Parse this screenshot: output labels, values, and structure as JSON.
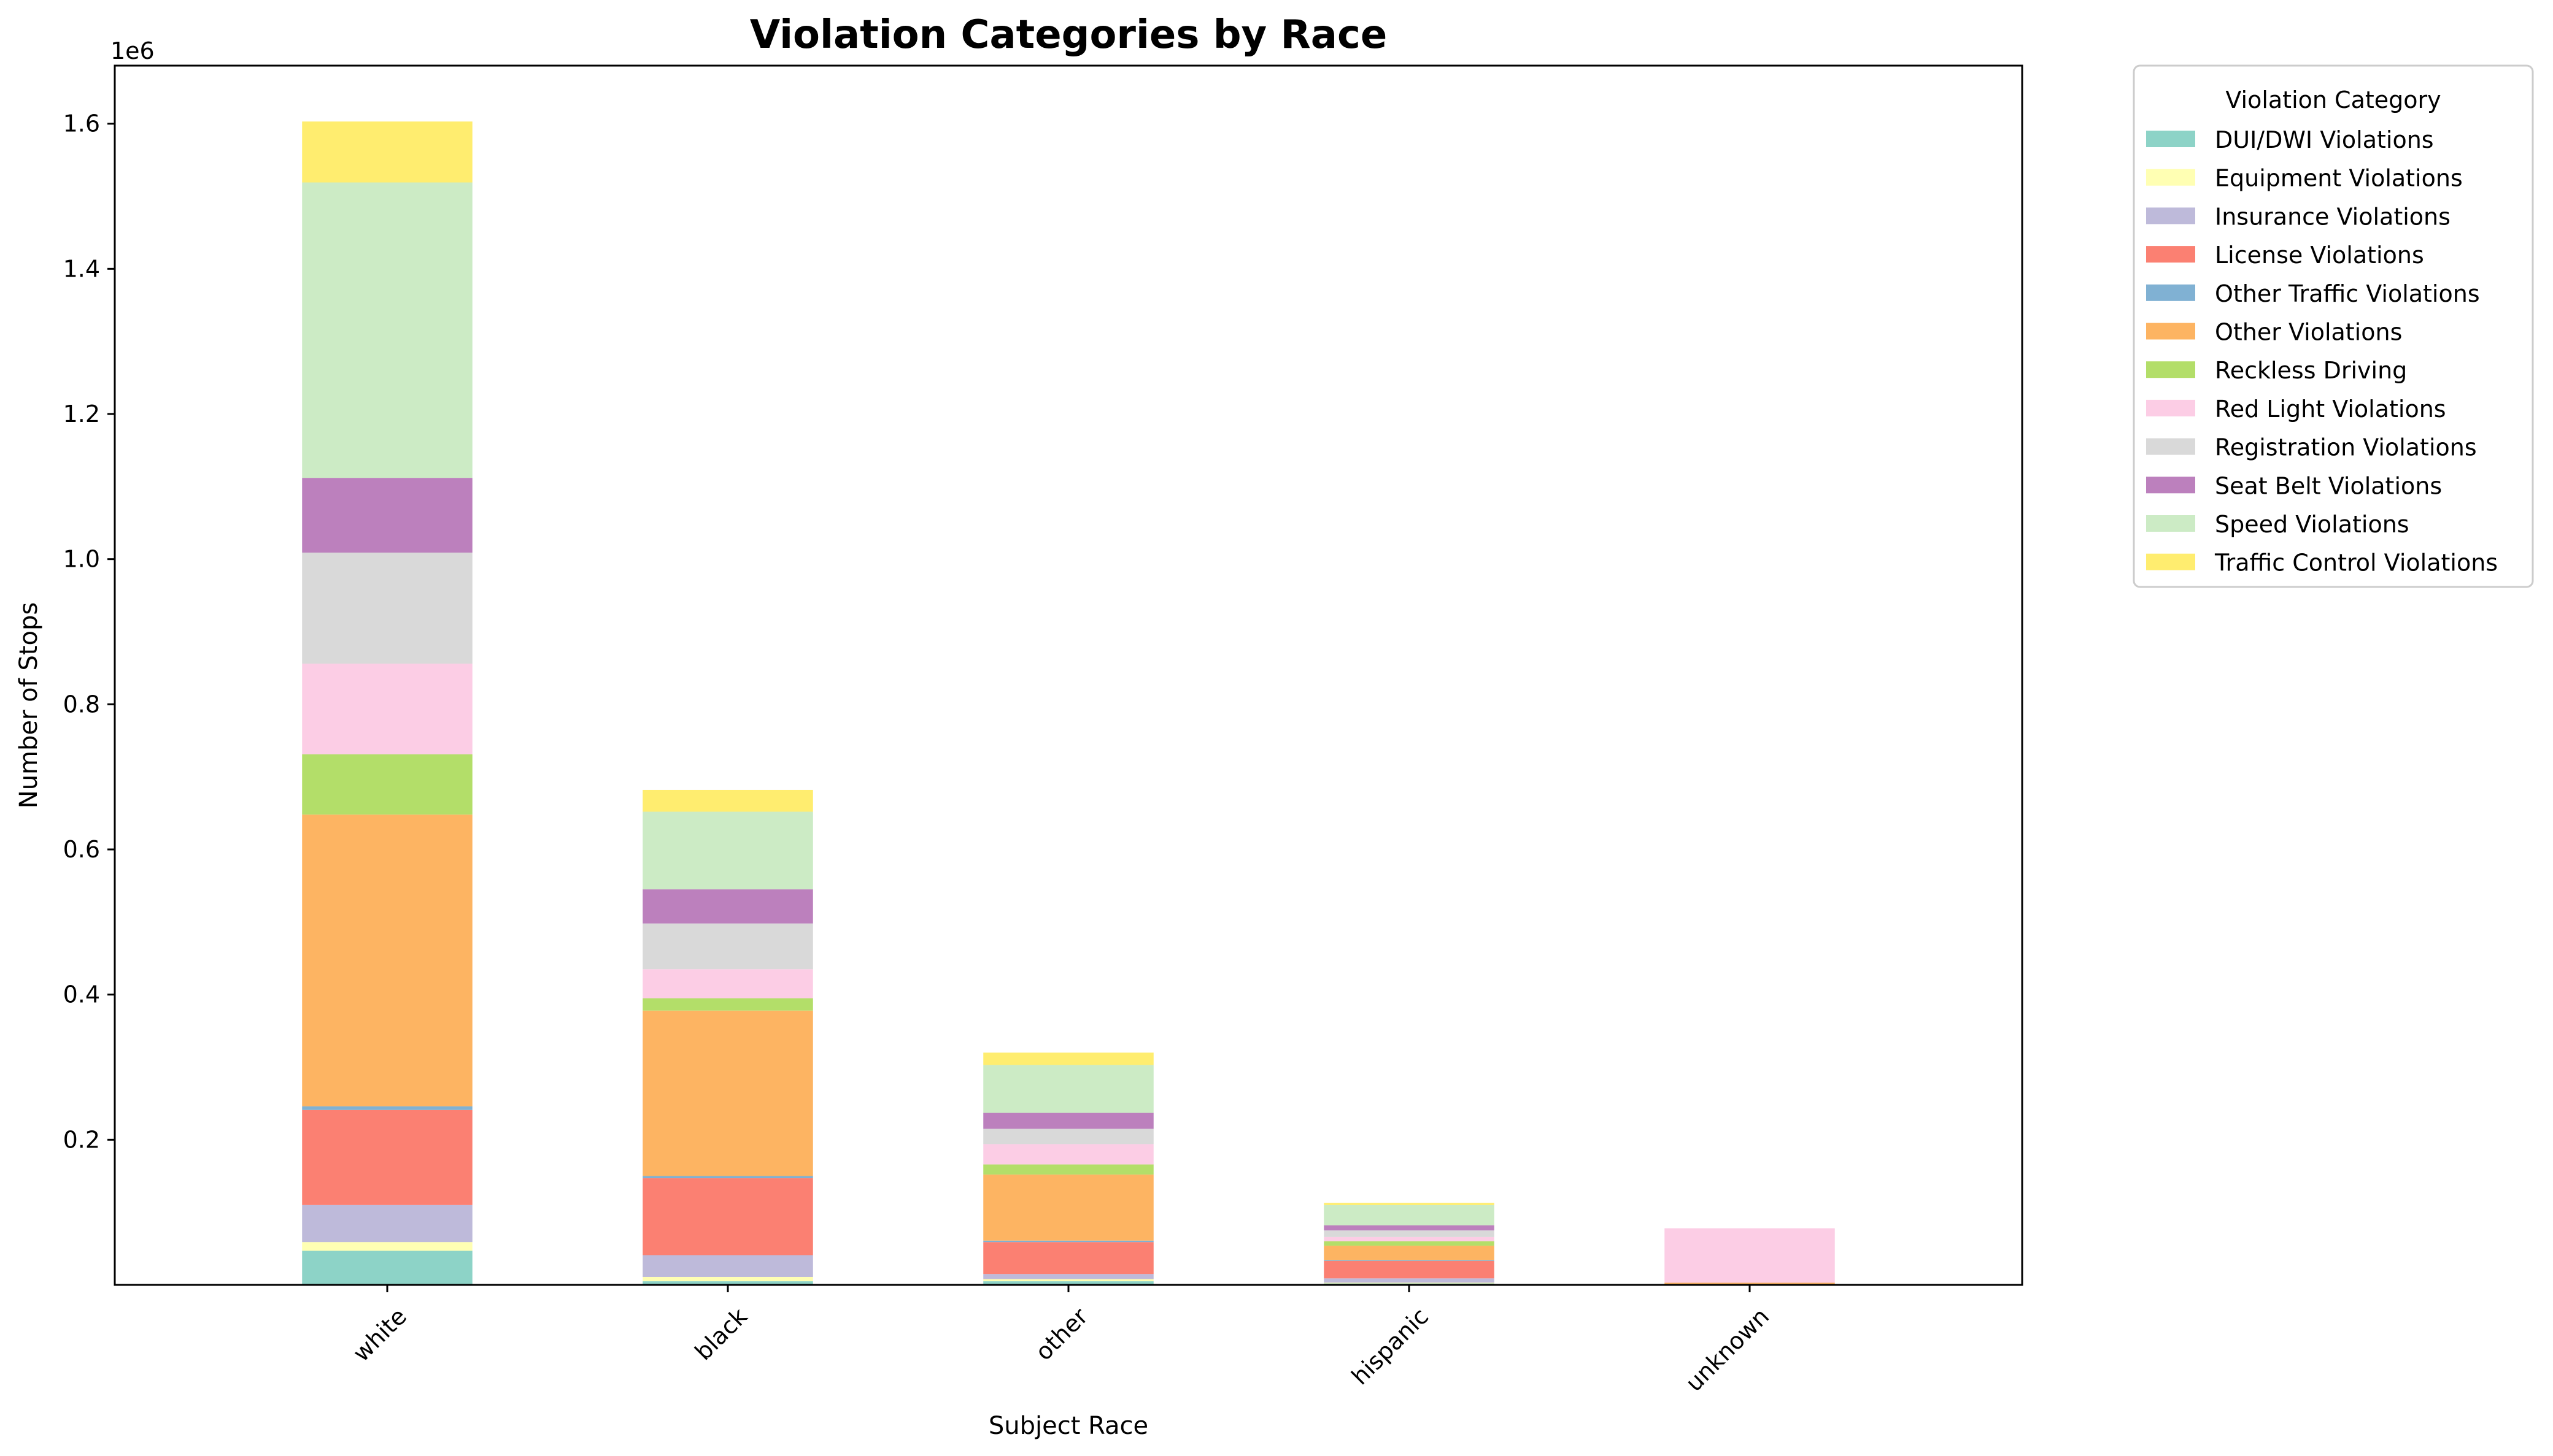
{
  "chart_data": {
    "type": "bar",
    "stacked": true,
    "title": "Violation Categories by Race",
    "xlabel": "Subject Race",
    "ylabel": "Number of Stops",
    "y_offset_label": "1e6",
    "ylim": [
      0,
      1680000
    ],
    "yticks": [
      {
        "value": 200000,
        "label": "0.2"
      },
      {
        "value": 400000,
        "label": "0.4"
      },
      {
        "value": 600000,
        "label": "0.6"
      },
      {
        "value": 800000,
        "label": "0.8"
      },
      {
        "value": 1000000,
        "label": "1.0"
      },
      {
        "value": 1200000,
        "label": "1.2"
      },
      {
        "value": 1400000,
        "label": "1.4"
      },
      {
        "value": 1600000,
        "label": "1.6"
      }
    ],
    "categories": [
      "white",
      "black",
      "other",
      "hispanic",
      "unknown"
    ],
    "legend_title": "Violation Category",
    "legend_position": "outside-upper-right",
    "grid": false,
    "series": [
      {
        "name": "DUI/DWI Violations",
        "color": "#8dd3c7",
        "values": [
          47000,
          5000,
          5000,
          2000,
          0
        ]
      },
      {
        "name": "Equipment Violations",
        "color": "#ffffb3",
        "values": [
          12000,
          6000,
          3000,
          1000,
          0
        ]
      },
      {
        "name": "Insurance Violations",
        "color": "#bebada",
        "values": [
          51000,
          30000,
          7000,
          6000,
          0
        ]
      },
      {
        "name": "License Violations",
        "color": "#fb8072",
        "values": [
          131000,
          106000,
          44000,
          24000,
          1000
        ]
      },
      {
        "name": "Other Traffic Violations",
        "color": "#80b1d3",
        "values": [
          5000,
          3000,
          2000,
          1000,
          0
        ]
      },
      {
        "name": "Other Violations",
        "color": "#fdb462",
        "values": [
          402000,
          228000,
          91000,
          20000,
          2000
        ]
      },
      {
        "name": "Reckless Driving",
        "color": "#b3de69",
        "values": [
          83000,
          17000,
          14000,
          6000,
          0
        ]
      },
      {
        "name": "Red Light Violations",
        "color": "#fccde5",
        "values": [
          125000,
          40000,
          28000,
          6000,
          75000
        ]
      },
      {
        "name": "Registration Violations",
        "color": "#d9d9d9",
        "values": [
          153000,
          63000,
          21000,
          9000,
          0
        ]
      },
      {
        "name": "Seat Belt Violations",
        "color": "#bc80bd",
        "values": [
          103000,
          47000,
          22000,
          7000,
          0
        ]
      },
      {
        "name": "Speed Violations",
        "color": "#ccebc5",
        "values": [
          407000,
          107000,
          66000,
          28000,
          0
        ]
      },
      {
        "name": "Traffic Control Violations",
        "color": "#ffed6f",
        "values": [
          84000,
          30000,
          17000,
          3000,
          0
        ]
      }
    ]
  }
}
